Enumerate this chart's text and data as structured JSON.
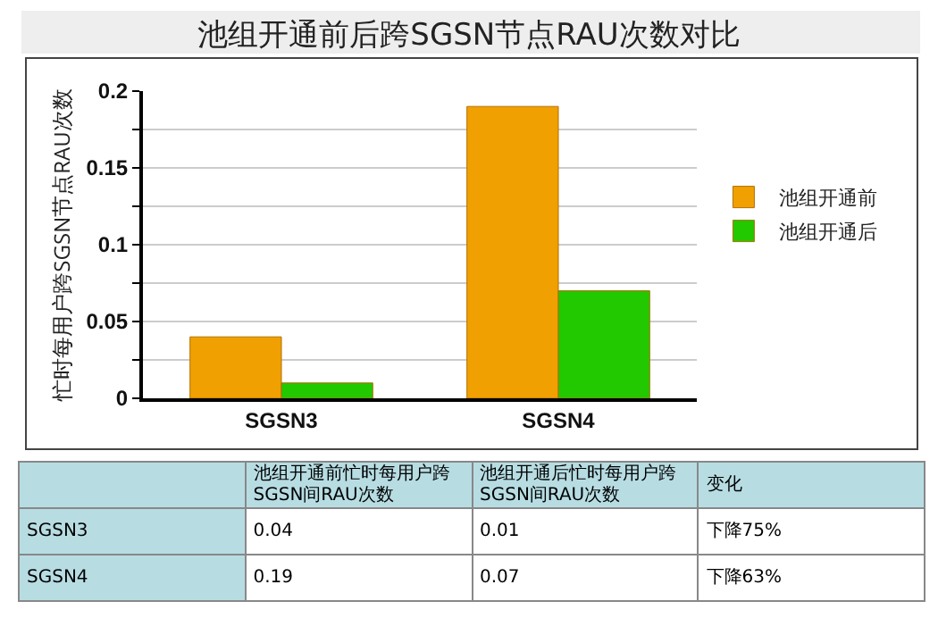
{
  "chart_data": {
    "type": "bar",
    "title": "池组开通前后跨SGSN节点RAU次数对比",
    "ylabel": "忙时每用户跨SGSN节点RAU次数",
    "categories": [
      "SGSN3",
      "SGSN4"
    ],
    "series": [
      {
        "name": "池组开通前",
        "color": "#f0a000",
        "values": [
          0.04,
          0.19
        ]
      },
      {
        "name": "池组开通后",
        "color": "#22c800",
        "values": [
          0.01,
          0.07
        ]
      }
    ],
    "ylim": [
      0,
      0.2
    ],
    "yticks": [
      0,
      {
        "value": 0.025,
        "label": null
      },
      0.05,
      {
        "value": 0.075,
        "label": null
      },
      0.1,
      {
        "value": 0.125,
        "label": null
      },
      0.15,
      {
        "value": 0.175,
        "label": null
      },
      0.2
    ],
    "grid": true,
    "legend": "right",
    "annotations": [
      "池组开通前忙时每用户跨SGSN间RAU次数",
      "池组开通后忙时每用户跨SGSN间RAU次数",
      "变化",
      "0.04",
      "0.01",
      "下降75%",
      "0.19",
      "0.07",
      "下降63%"
    ]
  }
}
